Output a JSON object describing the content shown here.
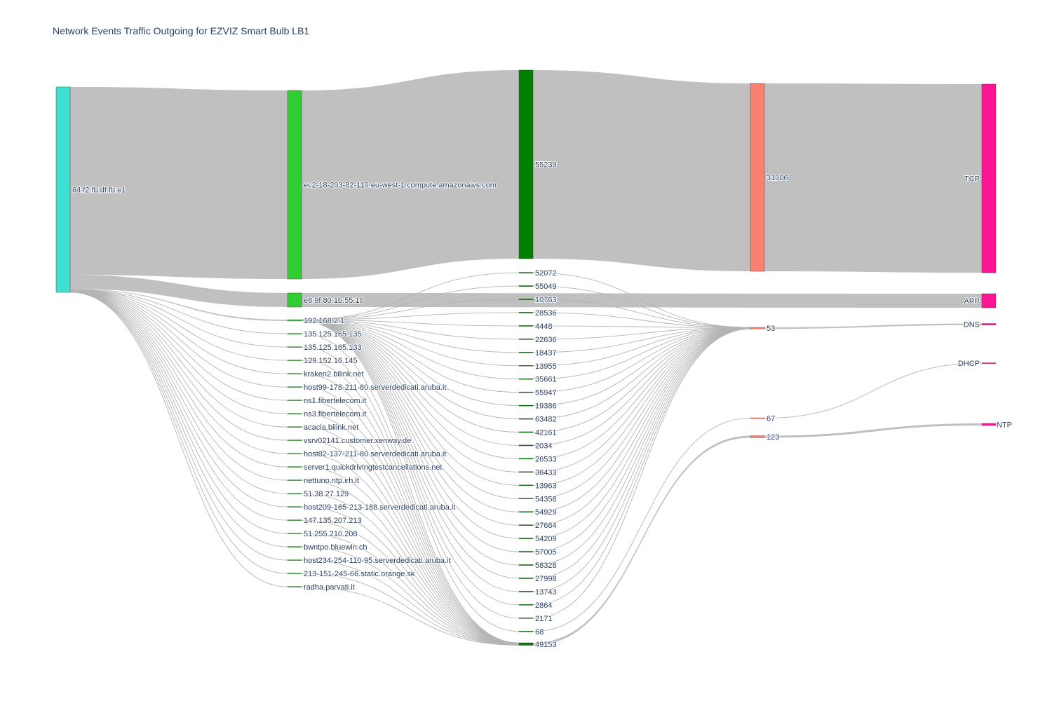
{
  "chart_data": {
    "type": "sankey",
    "title": "Network Events Traffic Outgoing for EZVIZ Smart Bulb LB1",
    "colors": {
      "source": "#40e0d0",
      "destination": "#32cd32",
      "src_port": "#008000",
      "dst_port": "#fa8072",
      "protocol": "#ff1493",
      "link": "#c0c0c0"
    },
    "columns": [
      {
        "role": "source",
        "nodes": [
          "64:f2:fb:df:fb:e1"
        ]
      },
      {
        "role": "destination",
        "nodes": [
          "ec2-18-203-82-110.eu-west-1.compute.amazonaws.com",
          "e8:9f:80:1b:55:10",
          "192.168.2.1",
          "135.125.165.135",
          "135.125.165.133",
          "129.152.16.145",
          "kraken2.bilink.net",
          "host99-178-211-80.serverdedicati.aruba.it",
          "ns1.fibertelecom.it",
          "ns3.fibertelecom.it",
          "acacia.bilink.net",
          "vsrv02141.customer.xenway.de",
          "host82-137-211-80.serverdedicati.aruba.it",
          "server1.quickdrivingtestcancellations.net",
          "nettuno.ntp.irh.it",
          "51.38.27.129",
          "host209-165-213-188.serverdedicati.aruba.it",
          "147.135.207.213",
          "51.255.210.208",
          "bwntpo.bluewin.ch",
          "host234-254-110-95.serverdedicati.aruba.it",
          "213-151-245-66.static.orange.sk",
          "radha.parvati.it"
        ]
      },
      {
        "role": "src_port",
        "nodes": [
          "55239",
          "52072",
          "55049",
          "10763",
          "28536",
          "4448",
          "22636",
          "18437",
          "13955",
          "35661",
          "55947",
          "19386",
          "63482",
          "42161",
          "2034",
          "26533",
          "36433",
          "13963",
          "54358",
          "54929",
          "27684",
          "54209",
          "57005",
          "58328",
          "27998",
          "13743",
          "2864",
          "2171",
          "68",
          "49153"
        ]
      },
      {
        "role": "dst_port",
        "nodes": [
          "31006",
          "53",
          "67",
          "123"
        ]
      },
      {
        "role": "protocol",
        "nodes": [
          "TCP",
          "ARP",
          "DNS",
          "DHCP",
          "NTP"
        ]
      }
    ],
    "links": [
      {
        "source": "64:f2:fb:df:fb:e1",
        "target": "ec2-18-203-82-110.eu-west-1.compute.amazonaws.com",
        "value": 270
      },
      {
        "source": "64:f2:fb:df:fb:e1",
        "target": "e8:9f:80:1b:55:10",
        "value": 20
      },
      {
        "source": "64:f2:fb:df:fb:e1",
        "target": "192.168.2.1",
        "value": 1
      },
      {
        "source": "64:f2:fb:df:fb:e1",
        "target": "135.125.165.135",
        "value": 0.2
      },
      {
        "source": "64:f2:fb:df:fb:e1",
        "target": "135.125.165.133",
        "value": 0.2
      },
      {
        "source": "64:f2:fb:df:fb:e1",
        "target": "129.152.16.145",
        "value": 0.2
      },
      {
        "source": "64:f2:fb:df:fb:e1",
        "target": "kraken2.bilink.net",
        "value": 0.2
      },
      {
        "source": "64:f2:fb:df:fb:e1",
        "target": "host99-178-211-80.serverdedicati.aruba.it",
        "value": 0.2
      },
      {
        "source": "64:f2:fb:df:fb:e1",
        "target": "ns1.fibertelecom.it",
        "value": 0.2
      },
      {
        "source": "64:f2:fb:df:fb:e1",
        "target": "ns3.fibertelecom.it",
        "value": 0.2
      },
      {
        "source": "64:f2:fb:df:fb:e1",
        "target": "acacia.bilink.net",
        "value": 0.2
      },
      {
        "source": "64:f2:fb:df:fb:e1",
        "target": "vsrv02141.customer.xenway.de",
        "value": 0.2
      },
      {
        "source": "64:f2:fb:df:fb:e1",
        "target": "host82-137-211-80.serverdedicati.aruba.it",
        "value": 0.2
      },
      {
        "source": "64:f2:fb:df:fb:e1",
        "target": "server1.quickdrivingtestcancellations.net",
        "value": 0.2
      },
      {
        "source": "64:f2:fb:df:fb:e1",
        "target": "nettuno.ntp.irh.it",
        "value": 0.2
      },
      {
        "source": "64:f2:fb:df:fb:e1",
        "target": "51.38.27.129",
        "value": 0.2
      },
      {
        "source": "64:f2:fb:df:fb:e1",
        "target": "host209-165-213-188.serverdedicati.aruba.it",
        "value": 0.2
      },
      {
        "source": "64:f2:fb:df:fb:e1",
        "target": "147.135.207.213",
        "value": 0.2
      },
      {
        "source": "64:f2:fb:df:fb:e1",
        "target": "51.255.210.208",
        "value": 0.2
      },
      {
        "source": "64:f2:fb:df:fb:e1",
        "target": "bwntpo.bluewin.ch",
        "value": 0.2
      },
      {
        "source": "64:f2:fb:df:fb:e1",
        "target": "host234-254-110-95.serverdedicati.aruba.it",
        "value": 0.2
      },
      {
        "source": "64:f2:fb:df:fb:e1",
        "target": "213-151-245-66.static.orange.sk",
        "value": 0.2
      },
      {
        "source": "64:f2:fb:df:fb:e1",
        "target": "radha.parvati.it",
        "value": 0.2
      },
      {
        "source": "ec2-18-203-82-110.eu-west-1.compute.amazonaws.com",
        "target": "55239",
        "value": 270
      },
      {
        "source": "e8:9f:80:1b:55:10",
        "target": "ARP",
        "value": 20
      },
      {
        "source": "192.168.2.1",
        "target": "52072",
        "value": 0.04
      },
      {
        "source": "192.168.2.1",
        "target": "55049",
        "value": 0.04
      },
      {
        "source": "192.168.2.1",
        "target": "10763",
        "value": 0.04
      },
      {
        "source": "192.168.2.1",
        "target": "28536",
        "value": 0.04
      },
      {
        "source": "192.168.2.1",
        "target": "4448",
        "value": 0.04
      },
      {
        "source": "192.168.2.1",
        "target": "22636",
        "value": 0.04
      },
      {
        "source": "192.168.2.1",
        "target": "18437",
        "value": 0.04
      },
      {
        "source": "192.168.2.1",
        "target": "13955",
        "value": 0.04
      },
      {
        "source": "192.168.2.1",
        "target": "35661",
        "value": 0.04
      },
      {
        "source": "192.168.2.1",
        "target": "55947",
        "value": 0.04
      },
      {
        "source": "192.168.2.1",
        "target": "19386",
        "value": 0.04
      },
      {
        "source": "192.168.2.1",
        "target": "63482",
        "value": 0.04
      },
      {
        "source": "192.168.2.1",
        "target": "42161",
        "value": 0.04
      },
      {
        "source": "192.168.2.1",
        "target": "2034",
        "value": 0.04
      },
      {
        "source": "192.168.2.1",
        "target": "26533",
        "value": 0.04
      },
      {
        "source": "192.168.2.1",
        "target": "36433",
        "value": 0.04
      },
      {
        "source": "192.168.2.1",
        "target": "13963",
        "value": 0.04
      },
      {
        "source": "192.168.2.1",
        "target": "54358",
        "value": 0.04
      },
      {
        "source": "192.168.2.1",
        "target": "54929",
        "value": 0.04
      },
      {
        "source": "192.168.2.1",
        "target": "27684",
        "value": 0.04
      },
      {
        "source": "192.168.2.1",
        "target": "54209",
        "value": 0.04
      },
      {
        "source": "192.168.2.1",
        "target": "57005",
        "value": 0.04
      },
      {
        "source": "192.168.2.1",
        "target": "58328",
        "value": 0.04
      },
      {
        "source": "192.168.2.1",
        "target": "27998",
        "value": 0.04
      },
      {
        "source": "192.168.2.1",
        "target": "13743",
        "value": 0.04
      },
      {
        "source": "192.168.2.1",
        "target": "2864",
        "value": 0.04
      },
      {
        "source": "192.168.2.1",
        "target": "2171",
        "value": 0.04
      },
      {
        "source": "192.168.2.1",
        "target": "68",
        "value": 0.04
      },
      {
        "source": "135.125.165.135",
        "target": "49153",
        "value": 0.2
      },
      {
        "source": "135.125.165.133",
        "target": "49153",
        "value": 0.2
      },
      {
        "source": "129.152.16.145",
        "target": "49153",
        "value": 0.2
      },
      {
        "source": "kraken2.bilink.net",
        "target": "49153",
        "value": 0.2
      },
      {
        "source": "host99-178-211-80.serverdedicati.aruba.it",
        "target": "49153",
        "value": 0.2
      },
      {
        "source": "ns1.fibertelecom.it",
        "target": "49153",
        "value": 0.2
      },
      {
        "source": "ns3.fibertelecom.it",
        "target": "49153",
        "value": 0.2
      },
      {
        "source": "acacia.bilink.net",
        "target": "49153",
        "value": 0.2
      },
      {
        "source": "vsrv02141.customer.xenway.de",
        "target": "49153",
        "value": 0.2
      },
      {
        "source": "host82-137-211-80.serverdedicati.aruba.it",
        "target": "49153",
        "value": 0.2
      },
      {
        "source": "server1.quickdrivingtestcancellations.net",
        "target": "49153",
        "value": 0.2
      },
      {
        "source": "nettuno.ntp.irh.it",
        "target": "49153",
        "value": 0.2
      },
      {
        "source": "51.38.27.129",
        "target": "49153",
        "value": 0.2
      },
      {
        "source": "host209-165-213-188.serverdedicati.aruba.it",
        "target": "49153",
        "value": 0.2
      },
      {
        "source": "147.135.207.213",
        "target": "49153",
        "value": 0.2
      },
      {
        "source": "51.255.210.208",
        "target": "49153",
        "value": 0.2
      },
      {
        "source": "bwntpo.bluewin.ch",
        "target": "49153",
        "value": 0.2
      },
      {
        "source": "host234-254-110-95.serverdedicati.aruba.it",
        "target": "49153",
        "value": 0.2
      },
      {
        "source": "213-151-245-66.static.orange.sk",
        "target": "49153",
        "value": 0.2
      },
      {
        "source": "radha.parvati.it",
        "target": "49153",
        "value": 0.2
      },
      {
        "source": "55239",
        "target": "31006",
        "value": 270
      },
      {
        "source": "52072",
        "target": "53",
        "value": 0.04
      },
      {
        "source": "55049",
        "target": "53",
        "value": 0.04
      },
      {
        "source": "10763",
        "target": "53",
        "value": 0.04
      },
      {
        "source": "28536",
        "target": "53",
        "value": 0.04
      },
      {
        "source": "4448",
        "target": "53",
        "value": 0.04
      },
      {
        "source": "22636",
        "target": "53",
        "value": 0.04
      },
      {
        "source": "18437",
        "target": "53",
        "value": 0.04
      },
      {
        "source": "13955",
        "target": "53",
        "value": 0.04
      },
      {
        "source": "35661",
        "target": "53",
        "value": 0.04
      },
      {
        "source": "55947",
        "target": "53",
        "value": 0.04
      },
      {
        "source": "19386",
        "target": "53",
        "value": 0.04
      },
      {
        "source": "63482",
        "target": "53",
        "value": 0.04
      },
      {
        "source": "42161",
        "target": "53",
        "value": 0.04
      },
      {
        "source": "2034",
        "target": "53",
        "value": 0.04
      },
      {
        "source": "26533",
        "target": "53",
        "value": 0.04
      },
      {
        "source": "36433",
        "target": "53",
        "value": 0.04
      },
      {
        "source": "13963",
        "target": "53",
        "value": 0.04
      },
      {
        "source": "54358",
        "target": "53",
        "value": 0.04
      },
      {
        "source": "54929",
        "target": "53",
        "value": 0.04
      },
      {
        "source": "27684",
        "target": "53",
        "value": 0.04
      },
      {
        "source": "54209",
        "target": "53",
        "value": 0.04
      },
      {
        "source": "57005",
        "target": "53",
        "value": 0.04
      },
      {
        "source": "58328",
        "target": "53",
        "value": 0.04
      },
      {
        "source": "27998",
        "target": "53",
        "value": 0.04
      },
      {
        "source": "13743",
        "target": "53",
        "value": 0.04
      },
      {
        "source": "2864",
        "target": "53",
        "value": 0.04
      },
      {
        "source": "2171",
        "target": "53",
        "value": 0.04
      },
      {
        "source": "68",
        "target": "67",
        "value": 0.04
      },
      {
        "source": "49153",
        "target": "123",
        "value": 4
      },
      {
        "source": "31006",
        "target": "TCP",
        "value": 270
      },
      {
        "source": "53",
        "target": "DNS",
        "value": 1.1
      },
      {
        "source": "67",
        "target": "DHCP",
        "value": 0.04
      },
      {
        "source": "123",
        "target": "NTP",
        "value": 4
      }
    ]
  }
}
